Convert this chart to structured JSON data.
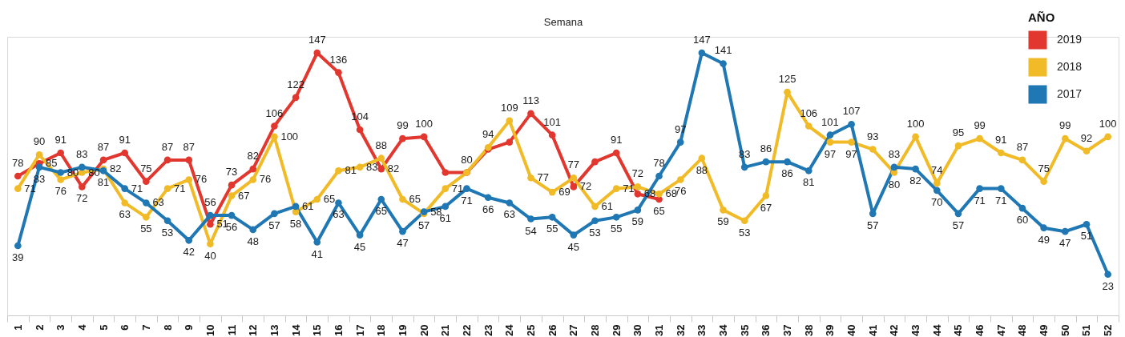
{
  "chart_data": {
    "type": "line",
    "xlabel": "Semana",
    "legend_title": "AÑO",
    "legend": "top right",
    "marker": "circle",
    "line_style": "solid",
    "tick_labels": "x",
    "ylim": [
      0,
      156
    ],
    "categories": [
      "1",
      "2",
      "3",
      "4",
      "5",
      "6",
      "7",
      "8",
      "9",
      "10",
      "11",
      "12",
      "13",
      "14",
      "15",
      "16",
      "17",
      "18",
      "19",
      "20",
      "21",
      "22",
      "23",
      "24",
      "25",
      "26",
      "27",
      "28",
      "29",
      "30",
      "31",
      "32",
      "33",
      "34",
      "35",
      "36",
      "37",
      "38",
      "39",
      "40",
      "41",
      "42",
      "43",
      "44",
      "45",
      "46",
      "47",
      "48",
      "49",
      "50",
      "51",
      "52"
    ],
    "series": [
      {
        "name": "2019",
        "color": "#e2372f",
        "values": [
          78,
          85,
          91,
          72,
          87,
          91,
          75,
          87,
          87,
          51,
          73,
          82,
          106,
          122,
          147,
          136,
          104,
          82,
          99,
          100,
          80,
          80,
          93,
          97,
          113,
          101,
          72,
          86,
          91,
          68,
          65,
          null,
          null,
          null,
          null,
          null,
          null,
          null,
          null,
          null,
          null,
          null,
          null,
          null,
          null,
          null,
          null,
          null,
          null,
          null,
          null,
          null
        ],
        "value_labels": [
          "78",
          "85",
          "91",
          "72",
          "87",
          "91",
          "75",
          "87",
          "87",
          "51",
          "73",
          "82",
          "106",
          "122",
          "147",
          "136",
          "104",
          "82",
          "99",
          "100",
          null,
          null,
          null,
          null,
          "113",
          "101",
          "72",
          null,
          "91",
          "68",
          "65",
          null,
          null,
          null,
          null,
          null,
          null,
          null,
          null,
          null,
          null,
          null,
          null,
          null,
          null,
          null,
          null,
          null,
          null,
          null,
          null,
          null
        ]
      },
      {
        "name": "2018",
        "color": "#f1bb28",
        "values": [
          71,
          90,
          76,
          80,
          82,
          63,
          55,
          71,
          76,
          40,
          67,
          76,
          100,
          58,
          65,
          81,
          83,
          88,
          65,
          57,
          71,
          80,
          94,
          109,
          77,
          69,
          77,
          61,
          71,
          72,
          68,
          76,
          88,
          59,
          53,
          67,
          125,
          106,
          97,
          97,
          93,
          80,
          100,
          74,
          95,
          99,
          91,
          87,
          75,
          99,
          92,
          100
        ],
        "value_labels": [
          "71",
          "90",
          "76",
          "80",
          "82",
          "63",
          "55",
          "71",
          "76",
          "40",
          "67",
          "76",
          "100",
          "58",
          "65",
          "81",
          "83",
          "88",
          "65",
          "57",
          "71",
          "80",
          "94",
          "109",
          "77",
          "69",
          "77",
          "61",
          "71",
          "72",
          "68",
          "76",
          "88",
          "59",
          "53",
          "67",
          "125",
          "106",
          "97",
          "97",
          "93",
          "80",
          "100",
          "74",
          "95",
          "99",
          "91",
          "87",
          "75",
          "99",
          "92",
          "100"
        ]
      },
      {
        "name": "2017",
        "color": "#1f77b4",
        "values": [
          39,
          83,
          80,
          83,
          81,
          71,
          63,
          53,
          42,
          56,
          56,
          48,
          57,
          61,
          41,
          63,
          45,
          65,
          47,
          58,
          61,
          71,
          66,
          63,
          54,
          55,
          45,
          53,
          55,
          59,
          78,
          97,
          147,
          141,
          83,
          86,
          86,
          81,
          101,
          107,
          57,
          83,
          82,
          70,
          57,
          71,
          71,
          60,
          49,
          47,
          51,
          23
        ],
        "value_labels": [
          "39",
          "83",
          "80",
          "83",
          "81",
          "71",
          "63",
          "53",
          "42",
          "56",
          "56",
          "48",
          "57",
          "61",
          "41",
          "63",
          "45",
          "65",
          "47",
          "58",
          "61",
          "71",
          "66",
          "63",
          "54",
          "55",
          "45",
          "53",
          "55",
          "59",
          "78",
          "97",
          "147",
          "141",
          "83",
          "86",
          "86",
          "81",
          "101",
          "107",
          "57",
          "83",
          "82",
          "70",
          "57",
          "71",
          "71",
          "60",
          "49",
          "47",
          "51",
          "23"
        ]
      }
    ]
  }
}
